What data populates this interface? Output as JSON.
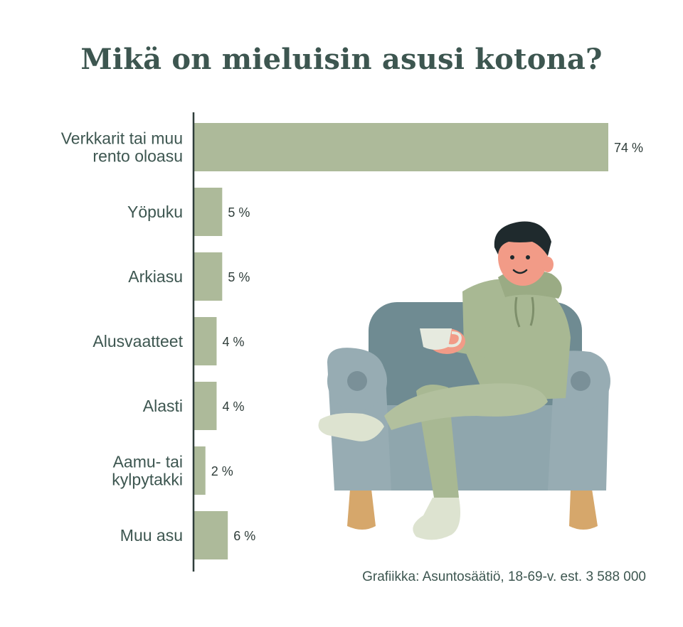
{
  "title": "Mikä on mieluisin asusi kotona?",
  "source": "Grafiikka: Asuntosäätiö, 18-69-v. est. 3 588 000",
  "colors": {
    "bar": "#adba9a",
    "axis": "#2f3d3a",
    "text": "#3d5650"
  },
  "chart_data": {
    "type": "bar",
    "orientation": "horizontal",
    "title": "Mikä on mieluisin asusi kotona?",
    "categories": [
      [
        "Verkkarit tai muu",
        "rento oloasu"
      ],
      [
        "Yöpuku"
      ],
      [
        "Arkiasu"
      ],
      [
        "Alusvaatteet"
      ],
      [
        "Alasti"
      ],
      [
        "Aamu- tai",
        "kylpytakki"
      ],
      [
        "Muu asu"
      ]
    ],
    "values": [
      74,
      5,
      5,
      4,
      4,
      2,
      6
    ],
    "value_labels": [
      "74 %",
      "5 %",
      "5 %",
      "4 %",
      "4 %",
      "2 %",
      "6 %"
    ],
    "xlim": [
      0,
      74
    ],
    "grid": false,
    "legend": "none"
  },
  "illustration": {
    "subject": "man-in-green-tracksuit-on-armchair-with-cup",
    "icons": [
      "armchair-icon",
      "person-icon",
      "cup-icon"
    ]
  }
}
